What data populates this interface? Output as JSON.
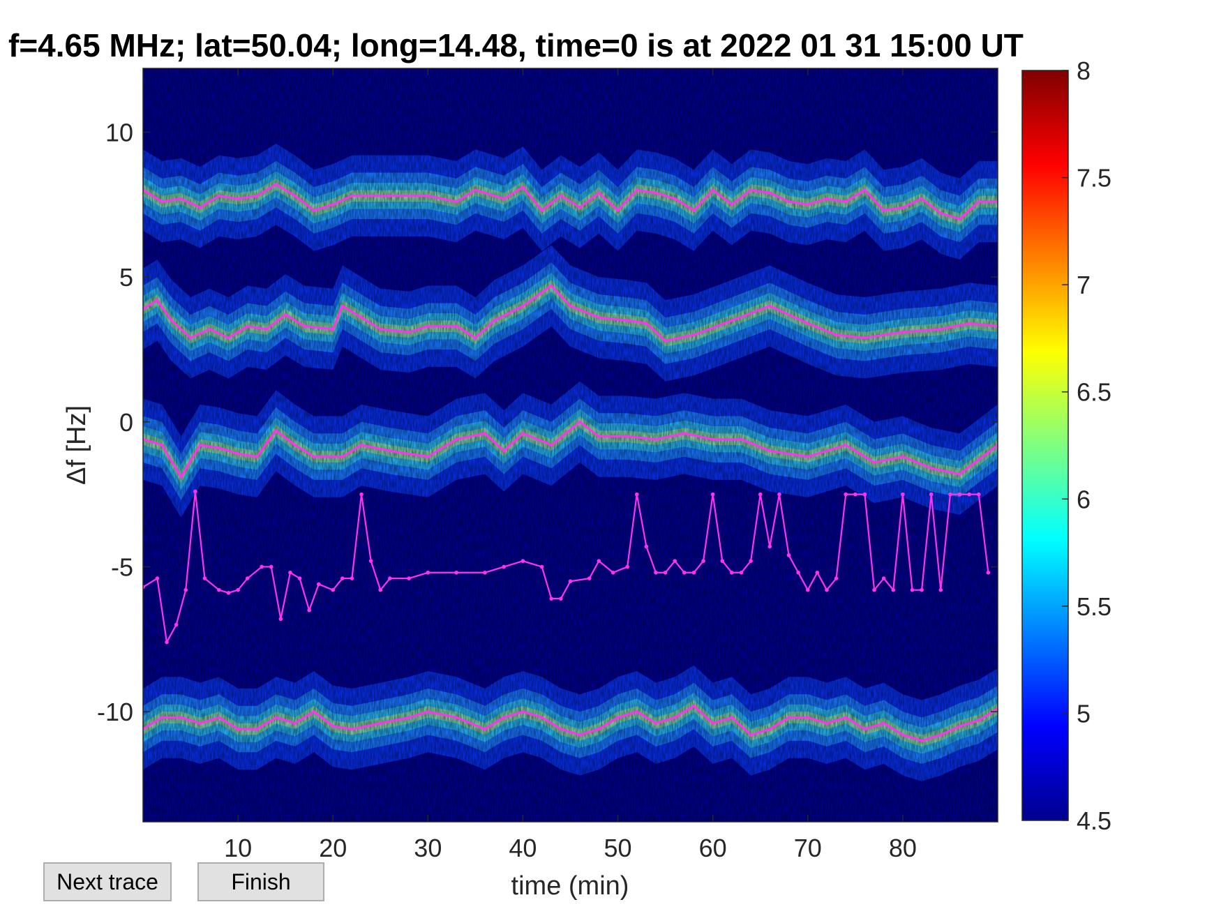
{
  "title": "f=4.65 MHz;  lat=50.04; long=14.48, time=0 is at 2022 01 31 15:00 UT",
  "buttons": {
    "next_trace": "Next trace",
    "finish": "Finish"
  },
  "colors": {
    "background_level": "#00008f",
    "trace": "#ff33ee",
    "raw_trace": "#000000"
  },
  "chart_data": {
    "type": "heatmap",
    "colormap": "jet",
    "xlabel": "time (min)",
    "ylabel": "Δf [Hz]",
    "xlim": [
      0,
      90
    ],
    "ylim": [
      -13.8,
      12.2
    ],
    "xticks": [
      10,
      20,
      30,
      40,
      50,
      60,
      70,
      80
    ],
    "yticks": [
      10,
      5,
      0,
      -5,
      -10
    ],
    "ytick_labels": [
      "10",
      "5",
      "0",
      "-5",
      "-10"
    ],
    "colorbar": {
      "range": [
        4.5,
        8
      ],
      "ticks": [
        8,
        7.5,
        7,
        6.5,
        6,
        5.5,
        5,
        4.5
      ],
      "tick_labels": [
        "8",
        "7.5",
        "7",
        "6.5",
        "6",
        "5.5",
        "5",
        "4.5"
      ]
    },
    "bands": [
      {
        "name": "band-upper",
        "trace": [
          [
            0,
            8
          ],
          [
            2,
            7.6
          ],
          [
            4,
            7.7
          ],
          [
            6,
            7.4
          ],
          [
            8,
            7.8
          ],
          [
            10,
            7.7
          ],
          [
            12,
            7.8
          ],
          [
            14,
            8.2
          ],
          [
            16,
            7.8
          ],
          [
            18,
            7.3
          ],
          [
            20,
            7.5
          ],
          [
            22,
            7.8
          ],
          [
            26,
            7.8
          ],
          [
            30,
            7.8
          ],
          [
            33,
            7.6
          ],
          [
            35,
            8.0
          ],
          [
            38,
            7.7
          ],
          [
            40,
            8.1
          ],
          [
            42,
            7.3
          ],
          [
            44,
            7.8
          ],
          [
            46,
            7.4
          ],
          [
            48,
            7.9
          ],
          [
            50,
            7.3
          ],
          [
            52,
            8.0
          ],
          [
            54,
            7.9
          ],
          [
            56,
            7.7
          ],
          [
            58,
            7.3
          ],
          [
            60,
            8.0
          ],
          [
            62,
            7.5
          ],
          [
            64,
            8.0
          ],
          [
            66,
            7.9
          ],
          [
            68,
            7.6
          ],
          [
            70,
            7.5
          ],
          [
            72,
            7.7
          ],
          [
            74,
            7.6
          ],
          [
            76,
            8.0
          ],
          [
            78,
            7.3
          ],
          [
            80,
            7.4
          ],
          [
            82,
            7.7
          ],
          [
            84,
            7.2
          ],
          [
            86,
            7.0
          ],
          [
            88,
            7.6
          ],
          [
            90,
            7.6
          ]
        ]
      },
      {
        "name": "band-middle",
        "trace": [
          [
            0,
            3.9
          ],
          [
            1.5,
            4.2
          ],
          [
            3,
            3.5
          ],
          [
            5,
            2.9
          ],
          [
            7,
            3.2
          ],
          [
            9,
            2.9
          ],
          [
            11,
            3.3
          ],
          [
            13,
            3.2
          ],
          [
            15,
            3.7
          ],
          [
            17,
            3.3
          ],
          [
            20,
            3.2
          ],
          [
            21,
            4.0
          ],
          [
            23,
            3.6
          ],
          [
            25,
            3.2
          ],
          [
            28,
            3.1
          ],
          [
            30,
            3.3
          ],
          [
            33,
            3.3
          ],
          [
            35,
            2.9
          ],
          [
            37,
            3.5
          ],
          [
            40,
            4.0
          ],
          [
            43,
            4.7
          ],
          [
            45,
            4.0
          ],
          [
            48,
            3.6
          ],
          [
            51,
            3.5
          ],
          [
            53,
            3.4
          ],
          [
            55,
            2.8
          ],
          [
            58,
            3.0
          ],
          [
            62,
            3.5
          ],
          [
            66,
            4.0
          ],
          [
            70,
            3.4
          ],
          [
            73,
            3.0
          ],
          [
            76,
            2.9
          ],
          [
            80,
            3.1
          ],
          [
            84,
            3.2
          ],
          [
            87,
            3.4
          ],
          [
            90,
            3.3
          ]
        ]
      },
      {
        "name": "band-center",
        "trace": [
          [
            0,
            -0.6
          ],
          [
            2,
            -0.8
          ],
          [
            4,
            -1.9
          ],
          [
            6,
            -0.8
          ],
          [
            8,
            -0.9
          ],
          [
            10,
            -1.1
          ],
          [
            12,
            -1.2
          ],
          [
            14,
            -0.3
          ],
          [
            16,
            -0.8
          ],
          [
            18,
            -1.2
          ],
          [
            21,
            -1.2
          ],
          [
            23,
            -0.8
          ],
          [
            26,
            -1.0
          ],
          [
            30,
            -1.2
          ],
          [
            33,
            -0.6
          ],
          [
            36,
            -0.4
          ],
          [
            38,
            -1.0
          ],
          [
            40,
            -0.4
          ],
          [
            43,
            -0.8
          ],
          [
            46,
            0.0
          ],
          [
            48,
            -0.5
          ],
          [
            51,
            -0.5
          ],
          [
            54,
            -0.6
          ],
          [
            57,
            -0.4
          ],
          [
            60,
            -0.6
          ],
          [
            63,
            -0.6
          ],
          [
            66,
            -1.0
          ],
          [
            70,
            -1.2
          ],
          [
            74,
            -0.8
          ],
          [
            77,
            -1.4
          ],
          [
            80,
            -1.2
          ],
          [
            83,
            -1.6
          ],
          [
            86,
            -1.8
          ],
          [
            90,
            -0.8
          ]
        ]
      },
      {
        "name": "band-noise",
        "trace": [
          [
            0,
            -5.7
          ],
          [
            1.5,
            -5.4
          ],
          [
            2.5,
            -7.6
          ],
          [
            3.5,
            -7.0
          ],
          [
            4.5,
            -5.8
          ],
          [
            5.5,
            -2.4
          ],
          [
            6.5,
            -5.4
          ],
          [
            8,
            -5.8
          ],
          [
            9,
            -5.9
          ],
          [
            10,
            -5.8
          ],
          [
            11,
            -5.4
          ],
          [
            12.5,
            -5.0
          ],
          [
            13.5,
            -5.0
          ],
          [
            14.5,
            -6.8
          ],
          [
            15.5,
            -5.2
          ],
          [
            16.5,
            -5.4
          ],
          [
            17.5,
            -6.5
          ],
          [
            18.5,
            -5.6
          ],
          [
            20,
            -5.8
          ],
          [
            21,
            -5.4
          ],
          [
            22,
            -5.4
          ],
          [
            23,
            -2.5
          ],
          [
            24,
            -4.8
          ],
          [
            25,
            -5.8
          ],
          [
            26,
            -5.4
          ],
          [
            28,
            -5.4
          ],
          [
            30,
            -5.2
          ],
          [
            33,
            -5.2
          ],
          [
            36,
            -5.2
          ],
          [
            38,
            -5.0
          ],
          [
            40,
            -4.8
          ],
          [
            42,
            -5.0
          ],
          [
            43,
            -6.1
          ],
          [
            44,
            -6.1
          ],
          [
            45,
            -5.5
          ],
          [
            47,
            -5.4
          ],
          [
            48,
            -4.8
          ],
          [
            49.5,
            -5.2
          ],
          [
            51,
            -5.0
          ],
          [
            52,
            -2.5
          ],
          [
            53,
            -4.3
          ],
          [
            54,
            -5.2
          ],
          [
            55,
            -5.2
          ],
          [
            56,
            -4.8
          ],
          [
            57,
            -5.2
          ],
          [
            58,
            -5.2
          ],
          [
            59,
            -4.8
          ],
          [
            60,
            -2.5
          ],
          [
            61,
            -4.8
          ],
          [
            62,
            -5.2
          ],
          [
            63,
            -5.2
          ],
          [
            64,
            -4.8
          ],
          [
            65,
            -2.5
          ],
          [
            66,
            -4.3
          ],
          [
            67,
            -2.5
          ],
          [
            68,
            -4.6
          ],
          [
            69,
            -5.2
          ],
          [
            70,
            -5.8
          ],
          [
            71,
            -5.2
          ],
          [
            72,
            -5.8
          ],
          [
            73,
            -5.4
          ],
          [
            74,
            -2.5
          ],
          [
            75,
            -2.5
          ],
          [
            76,
            -2.5
          ],
          [
            77,
            -5.8
          ],
          [
            78,
            -5.4
          ],
          [
            79,
            -5.8
          ],
          [
            80,
            -2.5
          ],
          [
            81,
            -5.8
          ],
          [
            82,
            -5.8
          ],
          [
            83,
            -2.5
          ],
          [
            84,
            -5.8
          ],
          [
            85,
            -2.5
          ],
          [
            86,
            -2.5
          ],
          [
            87,
            -2.5
          ],
          [
            88,
            -2.5
          ],
          [
            89,
            -5.2
          ]
        ]
      },
      {
        "name": "band-lower",
        "trace": [
          [
            0,
            -10.6
          ],
          [
            2,
            -10.2
          ],
          [
            4,
            -10.2
          ],
          [
            6,
            -10.4
          ],
          [
            8,
            -10.2
          ],
          [
            10,
            -10.6
          ],
          [
            12,
            -10.6
          ],
          [
            14,
            -10.2
          ],
          [
            16,
            -10.4
          ],
          [
            18,
            -10.0
          ],
          [
            20,
            -10.5
          ],
          [
            22,
            -10.6
          ],
          [
            25,
            -10.4
          ],
          [
            28,
            -10.2
          ],
          [
            30,
            -10.0
          ],
          [
            33,
            -10.2
          ],
          [
            36,
            -10.6
          ],
          [
            38,
            -10.2
          ],
          [
            40,
            -10.0
          ],
          [
            42,
            -10.2
          ],
          [
            44,
            -10.6
          ],
          [
            46,
            -10.8
          ],
          [
            48,
            -10.6
          ],
          [
            50,
            -10.2
          ],
          [
            52,
            -10.0
          ],
          [
            54,
            -10.4
          ],
          [
            56,
            -10.2
          ],
          [
            58,
            -9.8
          ],
          [
            60,
            -10.4
          ],
          [
            62,
            -10.2
          ],
          [
            64,
            -10.8
          ],
          [
            66,
            -10.6
          ],
          [
            68,
            -10.2
          ],
          [
            70,
            -10.2
          ],
          [
            72,
            -10.4
          ],
          [
            74,
            -10.2
          ],
          [
            76,
            -10.6
          ],
          [
            78,
            -10.4
          ],
          [
            80,
            -10.8
          ],
          [
            82,
            -11.0
          ],
          [
            84,
            -10.8
          ],
          [
            86,
            -10.5
          ],
          [
            88,
            -10.3
          ],
          [
            90,
            -9.9
          ]
        ]
      }
    ]
  }
}
